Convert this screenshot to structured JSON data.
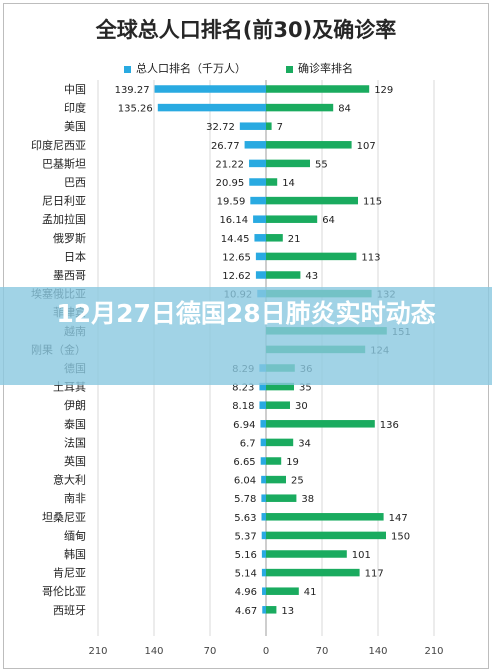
{
  "chart_data": {
    "type": "bar",
    "title": "全球总人口排名(前30)及确诊率",
    "categories": [
      "中国",
      "印度",
      "美国",
      "印度尼西亚",
      "巴基斯坦",
      "巴西",
      "尼日利亚",
      "孟加拉国",
      "俄罗斯",
      "日本",
      "墨西哥",
      "埃塞俄比亚",
      "菲律宾",
      "越南",
      "刚果（金）",
      "德国",
      "土耳其",
      "伊朗",
      "泰国",
      "法国",
      "英国",
      "意大利",
      "南非",
      "坦桑尼亚",
      "缅甸",
      "韩国",
      "肯尼亚",
      "哥伦比亚",
      "西班牙"
    ],
    "series": [
      {
        "name": "总人口排名（千万人）",
        "color": "#29aae1",
        "direction": "left",
        "values": [
          139.27,
          135.26,
          32.72,
          26.77,
          21.22,
          20.95,
          19.59,
          16.14,
          14.45,
          12.65,
          12.62,
          10.92,
          null,
          null,
          null,
          8.29,
          8.23,
          8.18,
          6.94,
          6.7,
          6.65,
          6.04,
          5.78,
          5.63,
          5.37,
          5.16,
          5.14,
          4.96,
          4.67
        ]
      },
      {
        "name": "确诊率排名",
        "color": "#1aab5f",
        "direction": "right",
        "values": [
          129,
          84,
          7,
          107,
          55,
          14,
          115,
          64,
          21,
          113,
          43,
          132,
          null,
          151,
          124,
          36,
          35,
          30,
          136,
          34,
          19,
          25,
          38,
          147,
          150,
          101,
          117,
          41,
          13
        ]
      }
    ],
    "x_tick_labels": [
      "210",
      "140",
      "70",
      "0",
      "70",
      "140",
      "210"
    ],
    "axis_max": 210,
    "grid": true,
    "legend_position": "top"
  },
  "overlay": {
    "title": "12月27日德国28日肺炎实时动态"
  }
}
